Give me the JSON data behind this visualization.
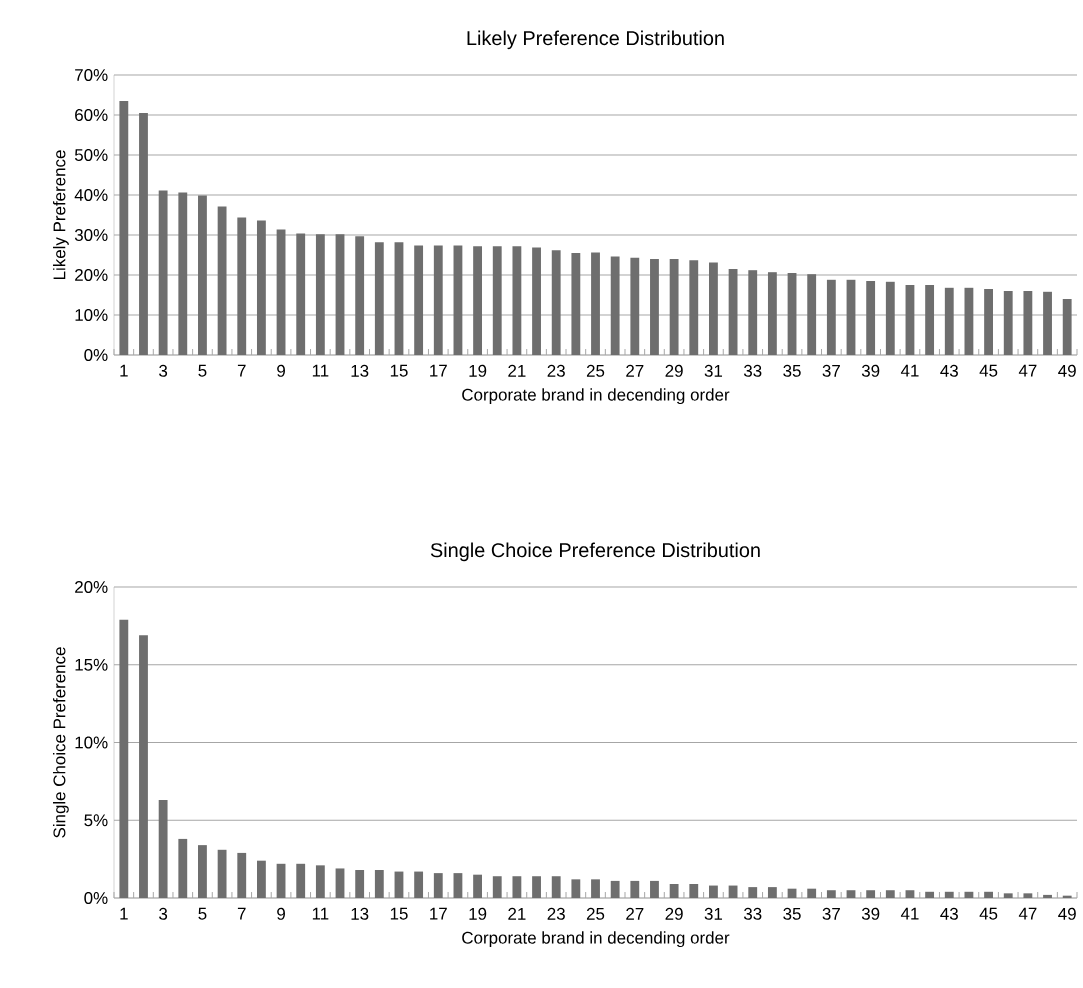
{
  "chart_data": [
    {
      "type": "bar",
      "title": "Likely Preference Distribution",
      "xlabel": "Corporate brand in decending order",
      "ylabel": "Likely Preference",
      "categories": [
        "1",
        null,
        "3",
        null,
        "5",
        null,
        "7",
        null,
        "9",
        null,
        "11",
        null,
        "13",
        null,
        "15",
        null,
        "17",
        null,
        "19",
        null,
        "21",
        null,
        "23",
        null,
        "25",
        null,
        "27",
        null,
        "29",
        null,
        "31",
        null,
        "33",
        null,
        "35",
        null,
        "37",
        null,
        "39",
        null,
        "41",
        null,
        "43",
        null,
        "45",
        null,
        "47",
        null,
        "49"
      ],
      "values": [
        63.5,
        60.5,
        41.1,
        40.6,
        39.9,
        37.1,
        34.4,
        33.6,
        31.4,
        30.4,
        30.2,
        30.2,
        29.7,
        28.2,
        28.2,
        27.4,
        27.4,
        27.4,
        27.2,
        27.2,
        27.2,
        26.9,
        26.2,
        25.5,
        25.6,
        24.6,
        24.3,
        24.0,
        24.0,
        23.7,
        23.1,
        21.5,
        21.2,
        20.7,
        20.5,
        20.2,
        18.8,
        18.8,
        18.5,
        18.3,
        17.5,
        17.5,
        16.8,
        16.8,
        16.5,
        16.0,
        16.0,
        15.8,
        14.0
      ],
      "color": "#6e6e6e",
      "ylim": [
        0,
        70
      ],
      "yticks": [
        {
          "value": 0,
          "label": "0%"
        },
        {
          "value": 10,
          "label": "10%"
        },
        {
          "value": 20,
          "label": "20%"
        },
        {
          "value": 30,
          "label": "30%"
        },
        {
          "value": 40,
          "label": "40%"
        },
        {
          "value": 50,
          "label": "50%"
        },
        {
          "value": 60,
          "label": "60%"
        },
        {
          "value": 70,
          "label": "70%"
        }
      ],
      "grid": "y"
    },
    {
      "type": "bar",
      "title": "Single Choice Preference Distribution",
      "xlabel": "Corporate brand in decending order",
      "ylabel": "Single Choice Preference",
      "categories": [
        "1",
        null,
        "3",
        null,
        "5",
        null,
        "7",
        null,
        "9",
        null,
        "11",
        null,
        "13",
        null,
        "15",
        null,
        "17",
        null,
        "19",
        null,
        "21",
        null,
        "23",
        null,
        "25",
        null,
        "27",
        null,
        "29",
        null,
        "31",
        null,
        "33",
        null,
        "35",
        null,
        "37",
        null,
        "39",
        null,
        "41",
        null,
        "43",
        null,
        "45",
        null,
        "47",
        null,
        "49"
      ],
      "values": [
        17.9,
        16.9,
        6.3,
        3.8,
        3.4,
        3.1,
        2.9,
        2.4,
        2.2,
        2.2,
        2.1,
        1.9,
        1.8,
        1.8,
        1.7,
        1.7,
        1.6,
        1.6,
        1.5,
        1.4,
        1.4,
        1.4,
        1.4,
        1.2,
        1.2,
        1.1,
        1.1,
        1.1,
        0.9,
        0.9,
        0.8,
        0.8,
        0.7,
        0.7,
        0.6,
        0.6,
        0.5,
        0.5,
        0.5,
        0.5,
        0.5,
        0.4,
        0.4,
        0.4,
        0.4,
        0.3,
        0.3,
        0.2,
        0.15
      ],
      "color": "#6e6e6e",
      "ylim": [
        0,
        20
      ],
      "yticks": [
        {
          "value": 0,
          "label": "0%"
        },
        {
          "value": 5,
          "label": "5%"
        },
        {
          "value": 10,
          "label": "10%"
        },
        {
          "value": 15,
          "label": "15%"
        },
        {
          "value": 20,
          "label": "20%"
        }
      ],
      "grid": "y"
    }
  ]
}
